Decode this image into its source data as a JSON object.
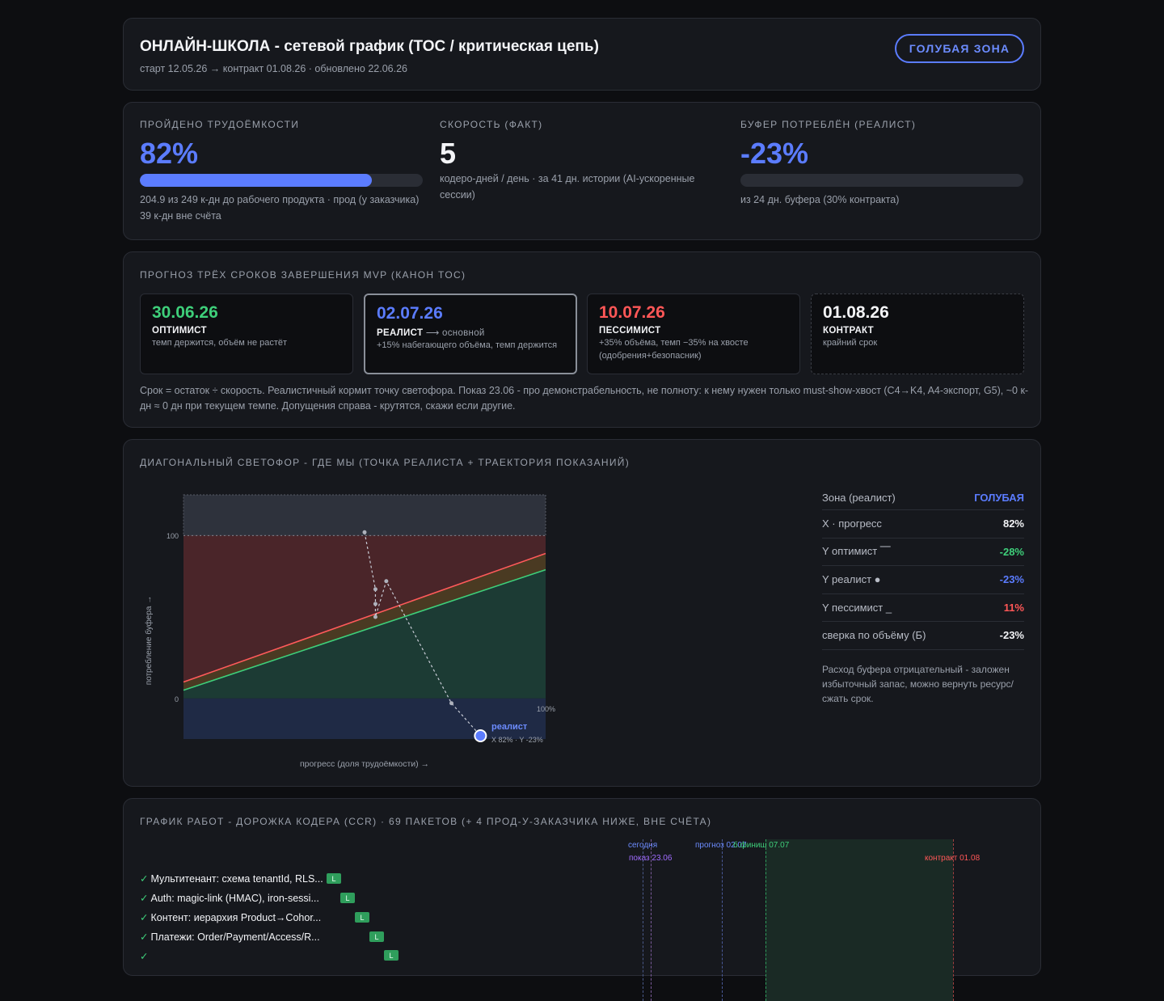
{
  "header": {
    "title": "ОНЛАЙН-ШКОЛА - сетевой график (TOC / критическая цепь)",
    "subtitle": "старт 12.05.26 → контракт 01.08.26 · обновлено 22.06.26",
    "zone_button": "ГОЛУБАЯ ЗОНА"
  },
  "metrics": [
    {
      "label": "ПРОЙДЕНО ТРУДОЁМКОСТИ",
      "value": "82%",
      "progress": 0.82,
      "desc": "204.9 из 249 к-дн до рабочего продукта · прод (у заказчика) 39 к-дн вне счёта",
      "color": "#5b7cff"
    },
    {
      "label": "СКОРОСТЬ (ФАКТ)",
      "value": "5",
      "desc": "кодеро-дней / день · за 41 дн. истории (AI-ускоренные сессии)",
      "color": "#f3f4f7"
    },
    {
      "label": "БУФЕР ПОТРЕБЛЁН (РЕАЛИСТ)",
      "value": "-23%",
      "progress": 0,
      "desc": "из 24 дн. буфера (30% контракта)",
      "color": "#5b7cff"
    }
  ],
  "forecast": {
    "label": "ПРОГНОЗ ТРЁХ СРОКОВ ЗАВЕРШЕНИЯ MVP (КАНОН TOC)",
    "cards": [
      {
        "date": "30.06.26",
        "name": "ОПТИМИСТ",
        "extra": "",
        "note": "темп держится, объём не растёт",
        "color": "#3ecf7a"
      },
      {
        "date": "02.07.26",
        "name": "РЕАЛИСТ",
        "extra": " ⟶ основной",
        "note": "+15% набегающего объёма, темп держится",
        "color": "#5b7cff"
      },
      {
        "date": "10.07.26",
        "name": "ПЕССИМИСТ",
        "extra": "",
        "note": "+35% объёма, темп −35% на хвосте (одобрения+безопасник)",
        "color": "#ff5757"
      },
      {
        "date": "01.08.26",
        "name": "КОНТРАКТ",
        "extra": "",
        "note": "крайний срок",
        "color": "#f3f4f7"
      }
    ],
    "footnote": "Срок = остаток ÷ скорость. Реалистичный кормит точку светофора. Показ 23.06 - про демонстрабельность, не полноту: к нему нужен только must-show-хвост (C4→K4, A4-экспорт, G5), ~0 к-дн ≈ 0 дн при текущем темпе. Допущения справа - крутятся, скажи если другие."
  },
  "traffic": {
    "label": "ДИАГОНАЛЬНЫЙ СВЕТОФОР - ГДЕ МЫ (ТОЧКА РЕАЛИСТА + ТРАЕКТОРИЯ ПОКАЗАНИЙ)",
    "ylabel": "потребление буфера →",
    "xlabel": "прогресс (доля трудоёмкости) →",
    "y_tick_100": "100",
    "y_tick_0": "0",
    "x_tick_100": "100%",
    "point_label": "реалист",
    "point_sub": "X 82% · Y -23%",
    "side": [
      {
        "k": "Зона (реалист)",
        "v": "ГОЛУБАЯ",
        "color": "#5b7cff"
      },
      {
        "k": "X · прогресс",
        "v": "82%",
        "color": "#f3f4f7"
      },
      {
        "k": "Y оптимист ⎺",
        "v": "-28%",
        "color": "#3ecf7a"
      },
      {
        "k": "Y реалист ●",
        "v": "-23%",
        "color": "#5b7cff"
      },
      {
        "k": "Y пессимист _",
        "v": "11%",
        "color": "#ff5757"
      },
      {
        "k": "сверка по объёму (Б)",
        "v": "-23%",
        "color": "#f3f4f7"
      }
    ],
    "side_note": "Расход буфера отрицательный - заложен избыточный запас, можно вернуть ресурс/сжать срок."
  },
  "chart_data": {
    "type": "scatter",
    "title": "",
    "xlabel": "прогресс (доля трудоёмкости) →",
    "ylabel": "потребление буфера →",
    "xlim": [
      0,
      100
    ],
    "ylim": [
      -25,
      125
    ],
    "zones": {
      "green_line": {
        "x": [
          0,
          100
        ],
        "y": [
          5,
          79
        ]
      },
      "red_line": {
        "x": [
          0,
          100
        ],
        "y": [
          10,
          89
        ]
      }
    },
    "series": [
      {
        "name": "реалист",
        "points": [
          {
            "x": 82,
            "y": -23
          }
        ]
      }
    ],
    "trajectory": [
      {
        "x": 50,
        "y": 102
      },
      {
        "x": 53,
        "y": 67
      },
      {
        "x": 53,
        "y": 58
      },
      {
        "x": 53,
        "y": 50
      },
      {
        "x": 56,
        "y": 72
      },
      {
        "x": 74,
        "y": -3
      },
      {
        "x": 82,
        "y": -23
      }
    ]
  },
  "gantt": {
    "label": "ГРАФИК РАБОТ - ДОРОЖКА КОДЕРА (CCR) · 69 ПАКЕТОВ (+ 4 ПРОД-У-ЗАКАЗЧИКА НИЖЕ, ВНЕ СЧЁТА)",
    "markers": {
      "today": "сегодня",
      "show": "показ 23.06",
      "forecast": "прогноз 02.07",
      "bfinish": "б.финиш 07.07",
      "contract": "контракт 01.08"
    },
    "tasks": [
      {
        "check": "✓",
        "label": "Мультитенант: схема tenantId, RLS...",
        "badge": "L"
      },
      {
        "check": "✓",
        "label": "Auth: magic-link (HMAC), iron-sessi...",
        "badge": "L"
      },
      {
        "check": "✓",
        "label": "Контент: иерархия Product→Cohor...",
        "badge": "L"
      },
      {
        "check": "✓",
        "label": "Платежи: Order/Payment/Access/R...",
        "badge": "L"
      },
      {
        "check": "✓",
        "label": "",
        "badge": "L"
      }
    ]
  }
}
